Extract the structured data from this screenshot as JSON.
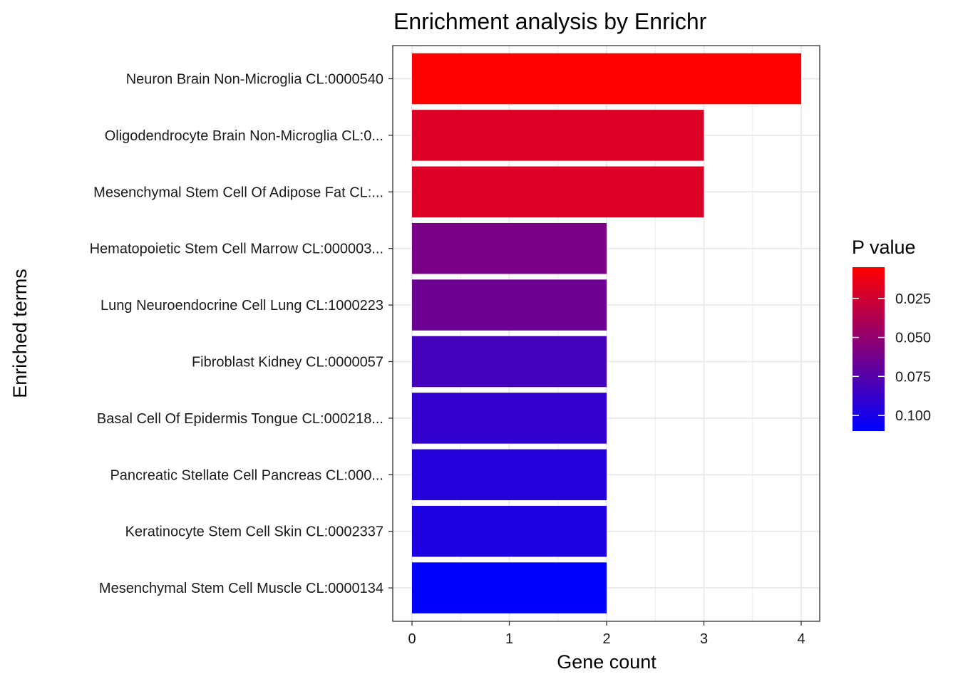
{
  "chart_data": {
    "type": "bar",
    "orientation": "horizontal",
    "title": "Enrichment analysis by Enrichr",
    "xlabel": "Gene count",
    "ylabel": "Enriched terms",
    "xlim": [
      0,
      4
    ],
    "x_ticks": [
      0,
      1,
      2,
      3,
      4
    ],
    "grid": true,
    "categories": [
      "Neuron Brain Non-Microglia CL:0000540",
      "Oligodendrocyte Brain Non-Microglia CL:0...",
      "Mesenchymal Stem Cell Of Adipose Fat CL:...",
      "Hematopoietic Stem Cell Marrow CL:000003...",
      "Lung Neuroendocrine Cell Lung CL:1000223",
      "Fibroblast Kidney CL:0000057",
      "Basal Cell Of Epidermis Tongue CL:000218...",
      "Pancreatic Stellate Cell Pancreas CL:000...",
      "Keratinocyte Stem Cell Skin CL:0002337",
      "Mesenchymal Stem Cell Muscle CL:0000134"
    ],
    "values": [
      4,
      3,
      3,
      2,
      2,
      2,
      2,
      2,
      2,
      2
    ],
    "p_values": [
      0.005,
      0.02,
      0.02,
      0.06,
      0.065,
      0.082,
      0.09,
      0.095,
      0.098,
      0.11
    ],
    "legend": {
      "title": "P value",
      "placement": "right",
      "type": "colorbar",
      "range": [
        0.005,
        0.11
      ],
      "ticks": [
        0.025,
        0.05,
        0.075,
        0.1
      ],
      "tick_labels": [
        "0.025",
        "0.050",
        "0.075",
        "0.100"
      ],
      "low_color": "#ff0000",
      "high_color": "#0000ff"
    }
  }
}
